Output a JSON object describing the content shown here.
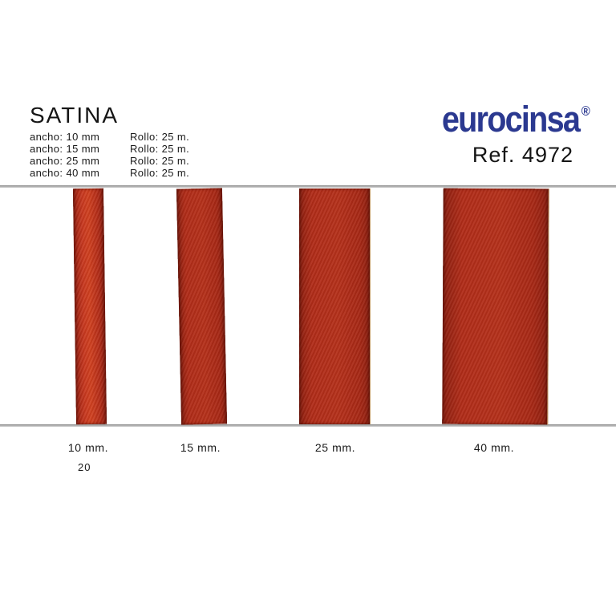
{
  "product": {
    "title": "SATINA",
    "specs": [
      {
        "ancho": "ancho: 10 mm",
        "rollo": "Rollo: 25 m."
      },
      {
        "ancho": "ancho: 15 mm",
        "rollo": "Rollo: 25 m."
      },
      {
        "ancho": "ancho: 25 mm",
        "rollo": "Rollo: 25 m."
      },
      {
        "ancho": "ancho: 40 mm",
        "rollo": "Rollo: 25 m."
      }
    ]
  },
  "brand": {
    "logo": "eurocinsa",
    "registered": "®",
    "reference": "Ref. 4972",
    "logo_color": "#2b3990"
  },
  "ribbons": [
    {
      "label": "10 mm.",
      "width_mm": 10
    },
    {
      "label": "15 mm.",
      "width_mm": 15
    },
    {
      "label": "25 mm.",
      "width_mm": 25
    },
    {
      "label": "40 mm.",
      "width_mm": 40
    }
  ],
  "page_number": "20",
  "colors": {
    "ribbon_red": "#b12c18",
    "ribbon_red_bright": "#c5341e",
    "logo_blue": "#2b3990",
    "rule_gray": "#a0a0a0"
  }
}
